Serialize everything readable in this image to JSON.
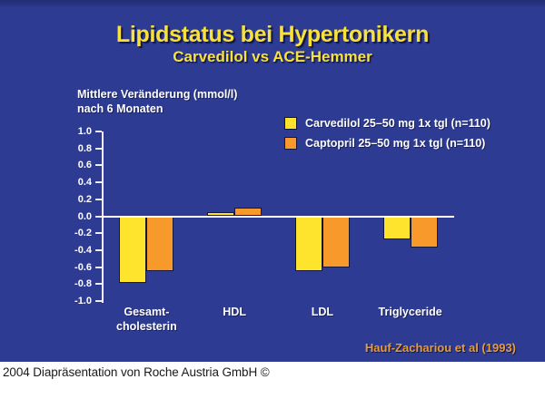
{
  "slide": {
    "title": "Lipidstatus bei Hypertonikern",
    "subtitle": "Carvedilol vs ACE-Hemmer",
    "reference": "Hauf-Zachariou et al (1993)",
    "background_color": "#2d3b93",
    "title_color": "#f8e13a",
    "text_color": "#ffffff"
  },
  "footer": {
    "text": "2004 Diapräsentation von Roche Austria GmbH ©"
  },
  "chart_data": {
    "type": "bar",
    "title": "Mittlere Veränderung (mmol/l)\nnach 6 Monaten",
    "xlabel": "",
    "ylabel": "Mittlere Veränderung (mmol/l) nach 6 Monaten",
    "categories": [
      "Gesamt-\ncholesterin",
      "HDL",
      "LDL",
      "Triglyceride"
    ],
    "category_keys": [
      "gesamtcholesterin",
      "hdl",
      "ldl",
      "triglyceride"
    ],
    "series": [
      {
        "key": "carvedilol",
        "name": "Carvedilol 25–50 mg 1x tgl (n=110)",
        "color": "#ffe42d",
        "values": [
          -0.79,
          0.05,
          -0.65,
          -0.27
        ]
      },
      {
        "key": "captopril",
        "name": "Captopril 25–50 mg 1x tgl (n=110)",
        "color": "#f8992b",
        "values": [
          -0.65,
          0.1,
          -0.6,
          -0.37
        ]
      }
    ],
    "ylim": [
      -1.0,
      1.0
    ],
    "ytick_step": 0.2,
    "yticks": [
      "1.0",
      "0.8",
      "0.6",
      "0.4",
      "0.2",
      "0.0",
      "-0.2",
      "-0.4",
      "-0.6",
      "-0.8",
      "-1.0"
    ],
    "grid": false,
    "legend_position": "top-right",
    "axis_color": "#eeeef4",
    "zero_line_color": "#ffffff"
  }
}
